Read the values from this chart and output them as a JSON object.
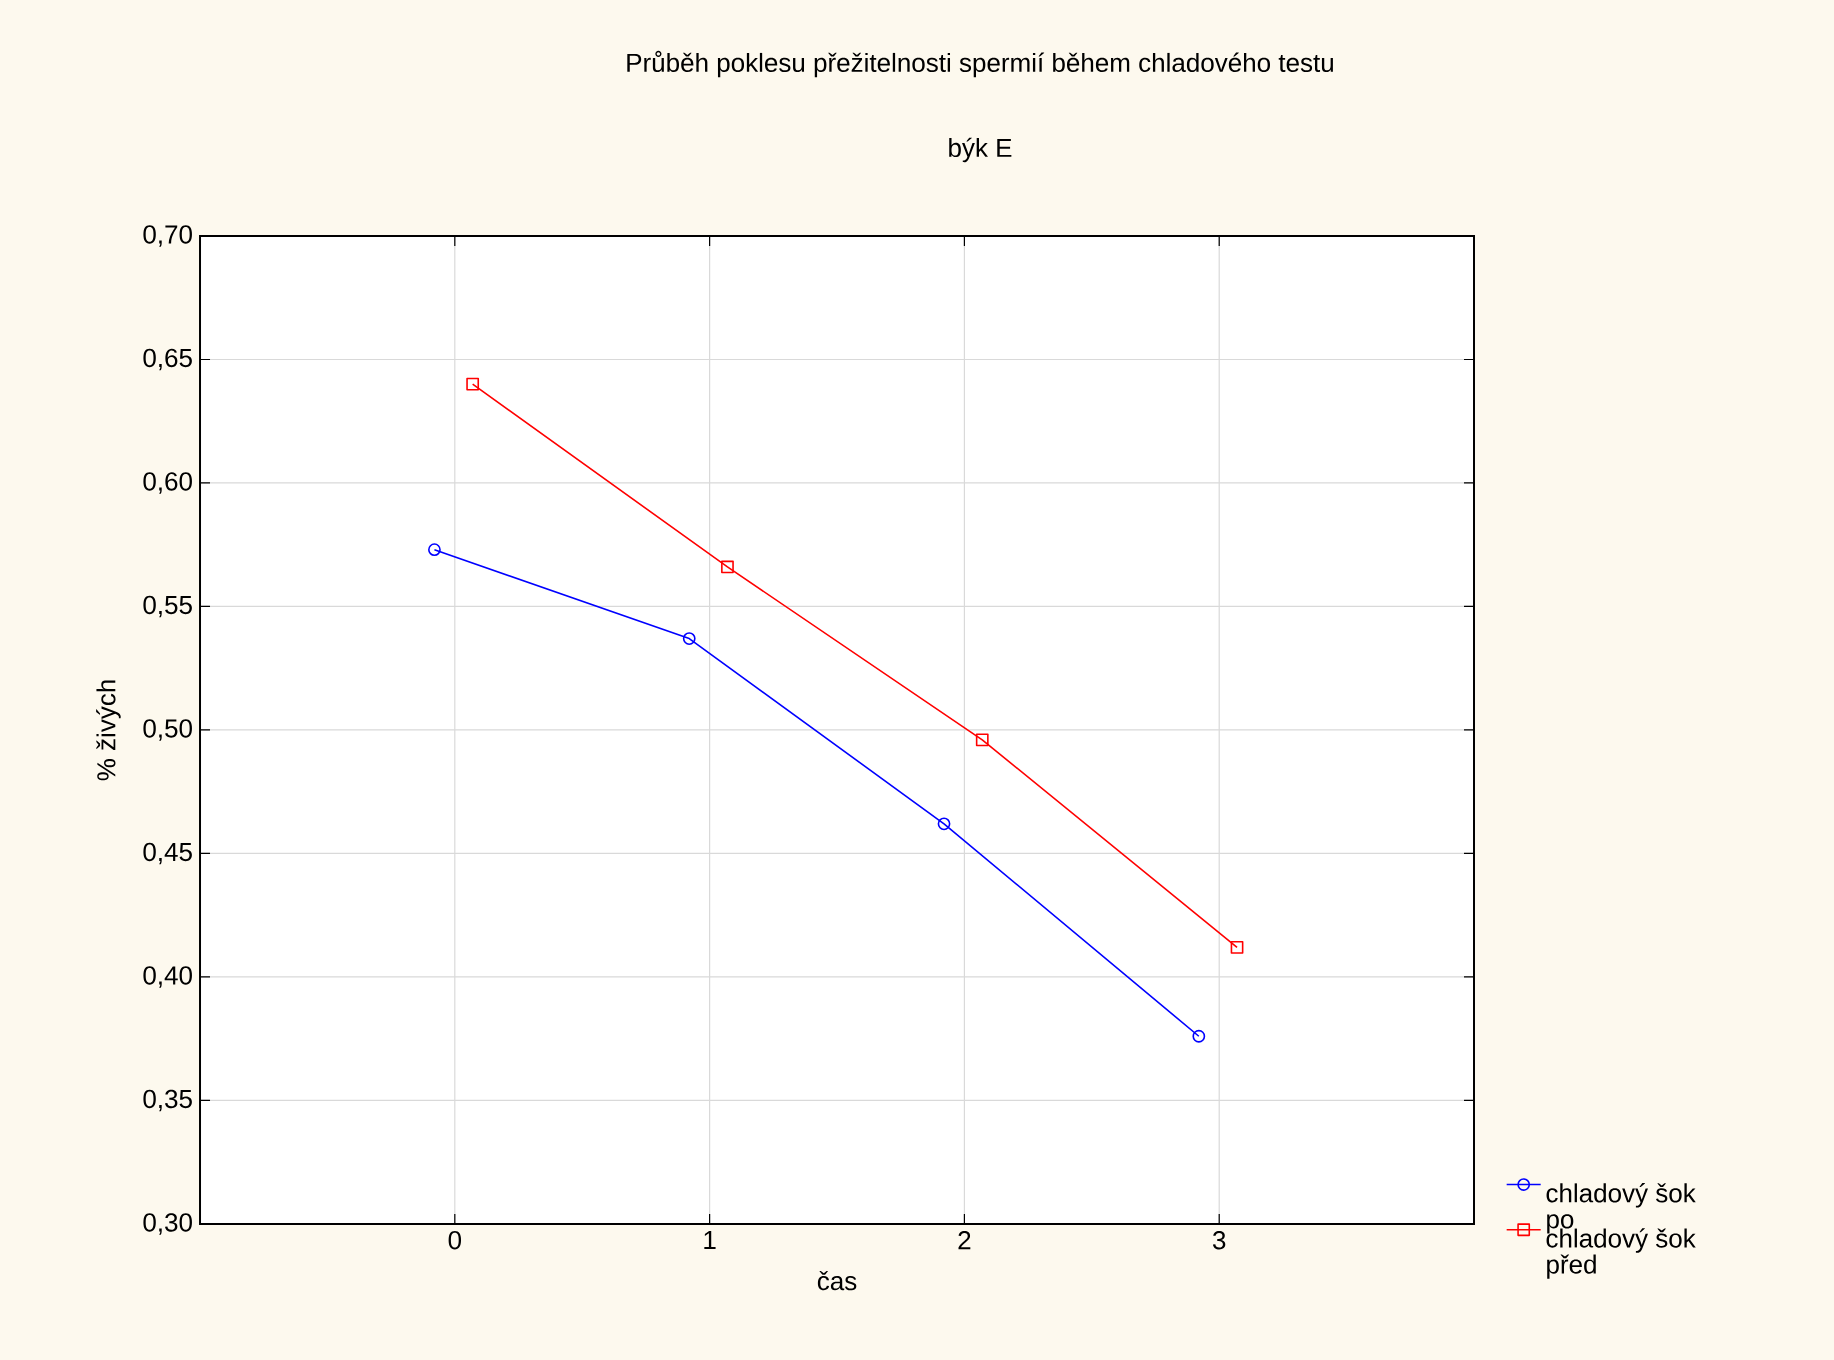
{
  "chart_data": {
    "type": "line",
    "title": "Průběh poklesu přežitelnosti spermií během chladového testu",
    "subtitle": "býk E",
    "xlabel": "čas",
    "ylabel": "% živých",
    "xlim": [
      -1,
      4
    ],
    "xticks": [
      0,
      1,
      2,
      3
    ],
    "ylim": [
      0.3,
      0.7
    ],
    "yticks": [
      {
        "value": 0.3,
        "label": "0,30"
      },
      {
        "value": 0.35,
        "label": "0,35"
      },
      {
        "value": 0.4,
        "label": "0,40"
      },
      {
        "value": 0.45,
        "label": "0,45"
      },
      {
        "value": 0.5,
        "label": "0,50"
      },
      {
        "value": 0.55,
        "label": "0,55"
      },
      {
        "value": 0.6,
        "label": "0,60"
      },
      {
        "value": 0.65,
        "label": "0,65"
      },
      {
        "value": 0.7,
        "label": "0,70"
      }
    ],
    "grid": true,
    "legend": "bottom right",
    "line_style": "solid",
    "series": [
      {
        "name": "chladový šok po",
        "color": "#0000ff",
        "marker": "circle",
        "x": [
          -0.08,
          0.92,
          1.92,
          2.92
        ],
        "values": [
          0.573,
          0.537,
          0.462,
          0.376
        ]
      },
      {
        "name": "chladový šok před",
        "color": "#ff0000",
        "marker": "square",
        "x": [
          0.07,
          1.07,
          2.07,
          3.07
        ],
        "values": [
          0.64,
          0.566,
          0.496,
          0.412
        ]
      }
    ]
  }
}
